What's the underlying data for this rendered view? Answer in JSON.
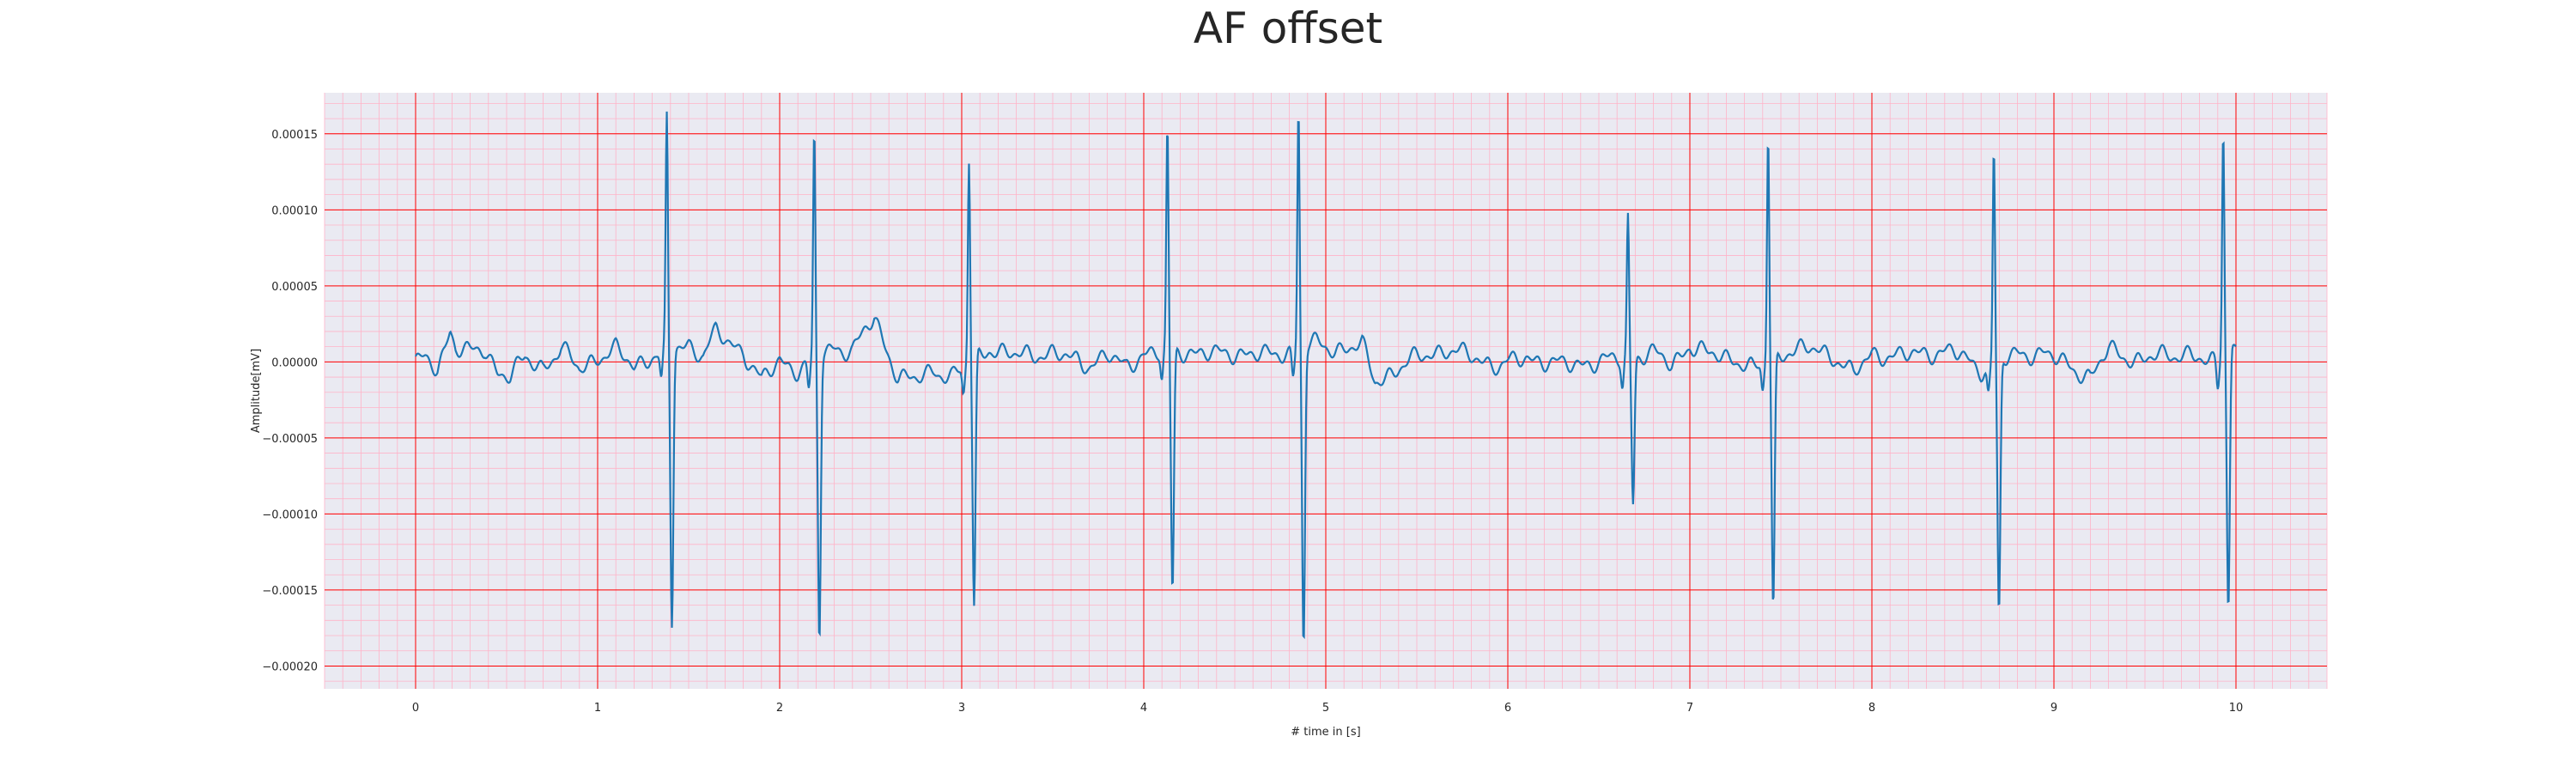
{
  "chart_data": {
    "type": "line",
    "title": "AF offset",
    "xlabel": "# time in [s]",
    "ylabel": "Amplitude[mV]",
    "xlim": [
      -0.5,
      10.5
    ],
    "ylim": [
      -0.000215,
      0.000177
    ],
    "x_ticks": [
      0,
      1,
      2,
      3,
      4,
      5,
      6,
      7,
      8,
      9,
      10
    ],
    "x_tick_labels": [
      "0",
      "1",
      "2",
      "3",
      "4",
      "5",
      "6",
      "7",
      "8",
      "9",
      "10"
    ],
    "y_ticks": [
      0.00015,
      0.0001,
      5e-05,
      0.0,
      -5e-05,
      -0.0001,
      -0.00015,
      -0.0002
    ],
    "y_tick_labels": [
      "0.00015",
      "0.00010",
      "0.00005",
      "0.00000",
      "−0.00005",
      "−0.00010",
      "−0.00015",
      "−0.00020"
    ],
    "grid": true,
    "grid_major_color": "#ff0000",
    "grid_minor_color": "#ffb3c8",
    "background": "#eaeaf2",
    "series": [
      {
        "color": "#1f77b4",
        "beats": [
          {
            "t": 1.38,
            "peak": 0.000152,
            "trough": -0.00018
          },
          {
            "t": 2.19,
            "peak": 0.000148,
            "trough": -0.000185
          },
          {
            "t": 3.04,
            "peak": 0.000133,
            "trough": -0.000165
          },
          {
            "t": 4.13,
            "peak": 0.000146,
            "trough": -0.00016
          },
          {
            "t": 4.85,
            "peak": 0.000159,
            "trough": -0.000195
          },
          {
            "t": 6.66,
            "peak": 9.2e-05,
            "trough": -9.6e-05
          },
          {
            "t": 7.43,
            "peak": 0.000151,
            "trough": -0.000166
          },
          {
            "t": 8.67,
            "peak": 0.000142,
            "trough": -0.000168
          },
          {
            "t": 9.93,
            "peak": 0.000148,
            "trough": -0.00017
          }
        ],
        "baseline_points": [
          [
            0.0,
            0.0
          ],
          [
            0.05,
            1e-06
          ],
          [
            0.12,
            -4e-06
          ],
          [
            0.16,
            9e-06
          ],
          [
            0.19,
            2.1e-05
          ],
          [
            0.22,
            1e-05
          ],
          [
            0.3,
            6e-06
          ],
          [
            0.38,
            8e-06
          ],
          [
            0.45,
            -6e-06
          ],
          [
            0.52,
            -9e-06
          ],
          [
            0.6,
            2e-06
          ],
          [
            0.7,
            -4e-06
          ],
          [
            0.8,
            9e-06
          ],
          [
            0.9,
            -5e-06
          ],
          [
            1.0,
            3e-06
          ],
          [
            1.1,
            8e-06
          ],
          [
            1.2,
            -3e-06
          ],
          [
            1.3,
            4e-06
          ],
          [
            1.5,
            1.1e-05
          ],
          [
            1.58,
            5e-06
          ],
          [
            1.65,
            2e-05
          ],
          [
            1.72,
            1.2e-05
          ],
          [
            1.8,
            7e-06
          ],
          [
            1.9,
            -1.2e-05
          ],
          [
            2.0,
            0.0
          ],
          [
            2.1,
            -5e-06
          ],
          [
            2.3,
            9e-06
          ],
          [
            2.4,
            8e-06
          ],
          [
            2.47,
            2.1e-05
          ],
          [
            2.52,
            2.8e-05
          ],
          [
            2.58,
            1e-05
          ],
          [
            2.65,
            -9e-06
          ],
          [
            2.75,
            -1.2e-05
          ],
          [
            2.85,
            -6e-06
          ],
          [
            2.95,
            -9e-06
          ],
          [
            3.15,
            9e-06
          ],
          [
            3.3,
            4e-06
          ],
          [
            3.5,
            6e-06
          ],
          [
            3.7,
            -2e-06
          ],
          [
            3.8,
            5e-06
          ],
          [
            3.9,
            -4e-06
          ],
          [
            4.0,
            6e-06
          ],
          [
            4.25,
            7e-06
          ],
          [
            4.4,
            5e-06
          ],
          [
            4.55,
            6e-06
          ],
          [
            4.7,
            4e-06
          ],
          [
            4.95,
            1.2e-05
          ],
          [
            5.05,
            8e-06
          ],
          [
            5.2,
            1.1e-05
          ],
          [
            5.27,
            -1.3e-05
          ],
          [
            5.35,
            -8e-06
          ],
          [
            5.5,
            3e-06
          ],
          [
            5.65,
            8e-06
          ],
          [
            5.8,
            4e-06
          ],
          [
            5.95,
            -3e-06
          ],
          [
            6.1,
            3e-06
          ],
          [
            6.3,
            -2e-06
          ],
          [
            6.5,
            0.0
          ],
          [
            6.8,
            6e-06
          ],
          [
            6.9,
            -2e-06
          ],
          [
            7.0,
            1.1e-05
          ],
          [
            7.1,
            5e-06
          ],
          [
            7.25,
            2e-06
          ],
          [
            7.35,
            -5e-06
          ],
          [
            7.55,
            8e-06
          ],
          [
            7.7,
            8e-06
          ],
          [
            7.8,
            3e-06
          ],
          [
            7.9,
            -8e-06
          ],
          [
            8.0,
            5e-06
          ],
          [
            8.15,
            4e-06
          ],
          [
            8.3,
            6e-06
          ],
          [
            8.45,
            7e-06
          ],
          [
            8.6,
            -5e-06
          ],
          [
            8.8,
            5e-06
          ],
          [
            8.95,
            6e-06
          ],
          [
            9.1,
            -4e-06
          ],
          [
            9.2,
            -1e-05
          ],
          [
            9.3,
            8e-06
          ],
          [
            9.45,
            1e-06
          ],
          [
            9.6,
            4e-06
          ],
          [
            9.75,
            6e-06
          ],
          [
            9.85,
            -3e-06
          ],
          [
            9.98,
            1.3e-05
          ],
          [
            10.0,
            6e-06
          ]
        ]
      }
    ]
  }
}
